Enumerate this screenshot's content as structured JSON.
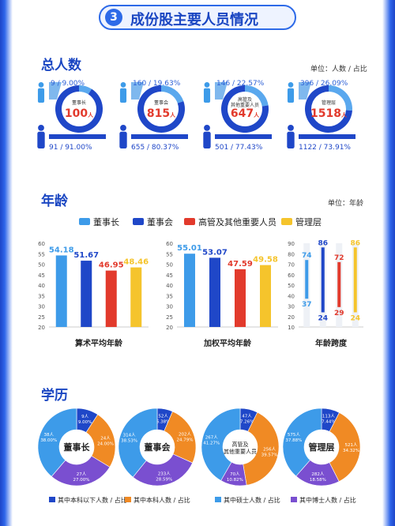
{
  "header": {
    "number": "3",
    "title": "成份股主要人员情况"
  },
  "headcount": {
    "title": "总人数",
    "unit": "单位：人数 / 占比",
    "items": [
      {
        "name": "董事长",
        "total": "100",
        "unit": "人",
        "female": "9 / 9.00%",
        "male": "91 / 91.00%",
        "female_pct": 9.0
      },
      {
        "name": "董事会",
        "total": "815",
        "unit": "人",
        "female": "160 / 19.63%",
        "male": "655 / 80.37%",
        "female_pct": 19.63
      },
      {
        "name": "高管及其他重要人员",
        "name_line1": "高管及",
        "name_line2": "其他重要人员",
        "total": "647",
        "unit": "人",
        "female": "146 / 22.57%",
        "male": "501 / 77.43%",
        "female_pct": 22.57
      },
      {
        "name": "管理层",
        "total": "1518",
        "unit": "人",
        "female": "396 / 26.09%",
        "male": "1122 / 73.91%",
        "female_pct": 26.09
      }
    ]
  },
  "age": {
    "title": "年龄",
    "unit": "单位：年龄",
    "legend": [
      {
        "label": "董事长",
        "color": "#3d9be9"
      },
      {
        "label": "董事会",
        "color": "#1f47c8"
      },
      {
        "label": "高管及其他重要人员",
        "color": "#e23a2c"
      },
      {
        "label": "管理层",
        "color": "#f5c42c"
      }
    ]
  },
  "chart_data": [
    {
      "type": "bar",
      "title": "算术平均年龄",
      "categories": [
        "董事长",
        "董事会",
        "高管及其他重要人员",
        "管理层"
      ],
      "values": [
        54.18,
        51.67,
        46.95,
        48.46
      ],
      "labels": [
        "54.18",
        "51.67",
        "46.95",
        "48.46"
      ],
      "ylim": [
        20,
        60
      ],
      "yticks": [
        "20",
        "25",
        "30",
        "35",
        "40",
        "45",
        "50",
        "55",
        "60"
      ]
    },
    {
      "type": "bar",
      "title": "加权平均年龄",
      "categories": [
        "董事长",
        "董事会",
        "高管及其他重要人员",
        "管理层"
      ],
      "values": [
        55.01,
        53.07,
        47.59,
        49.58
      ],
      "labels": [
        "55.01",
        "53.07",
        "47.59",
        "49.58"
      ],
      "ylim": [
        20,
        60
      ],
      "yticks": [
        "20",
        "25",
        "30",
        "35",
        "40",
        "45",
        "50",
        "55",
        "60"
      ]
    },
    {
      "type": "bar",
      "title": "年龄跨度",
      "categories": [
        "董事长",
        "董事会",
        "高管及其他重要人员",
        "管理层"
      ],
      "ranges": [
        [
          37,
          74
        ],
        [
          24,
          86
        ],
        [
          29,
          72
        ],
        [
          24,
          86
        ]
      ],
      "ylim": [
        10,
        90
      ],
      "yticks": [
        "10",
        "20",
        "30",
        "40",
        "50",
        "60",
        "70",
        "80",
        "90"
      ]
    }
  ],
  "education": {
    "title": "学历",
    "legend": [
      "其中本科以下人数 / 占比",
      "其中本科人数 / 占比",
      "其中硕士人数 / 占比",
      "其中博士人数 / 占比"
    ],
    "colors": [
      "#1f47c8",
      "#f08a24",
      "#3d9be9",
      "#7a4fd0"
    ],
    "groups": [
      {
        "name": "董事长",
        "values": [
          9,
          24,
          38,
          27
        ],
        "counts": [
          "9人",
          "24人",
          "38人",
          "27人"
        ],
        "pcts": [
          "9.00%",
          "24.00%",
          "38.00%",
          "27.00%"
        ]
      },
      {
        "name": "董事会",
        "values": [
          52,
          202,
          314,
          233
        ],
        "counts": [
          "52人",
          "202人",
          "314人",
          "233人"
        ],
        "pcts": [
          "6.38%",
          "24.79%",
          "38.53%",
          "28.59%"
        ]
      },
      {
        "name": "高管及其他重要人员",
        "name_line1": "高管及",
        "name_line2": "其他重要人员",
        "values": [
          47,
          256,
          267,
          70
        ],
        "counts": [
          "47人",
          "256人",
          "267人",
          "70人"
        ],
        "pcts": [
          "7.26%",
          "39.57%",
          "41.27%",
          "10.82%"
        ]
      },
      {
        "name": "管理层",
        "values": [
          113,
          521,
          575,
          282
        ],
        "counts": [
          "113人",
          "521人",
          "575人",
          "282人"
        ],
        "pcts": [
          "7.44%",
          "34.32%",
          "37.88%",
          "18.58%"
        ]
      }
    ]
  }
}
